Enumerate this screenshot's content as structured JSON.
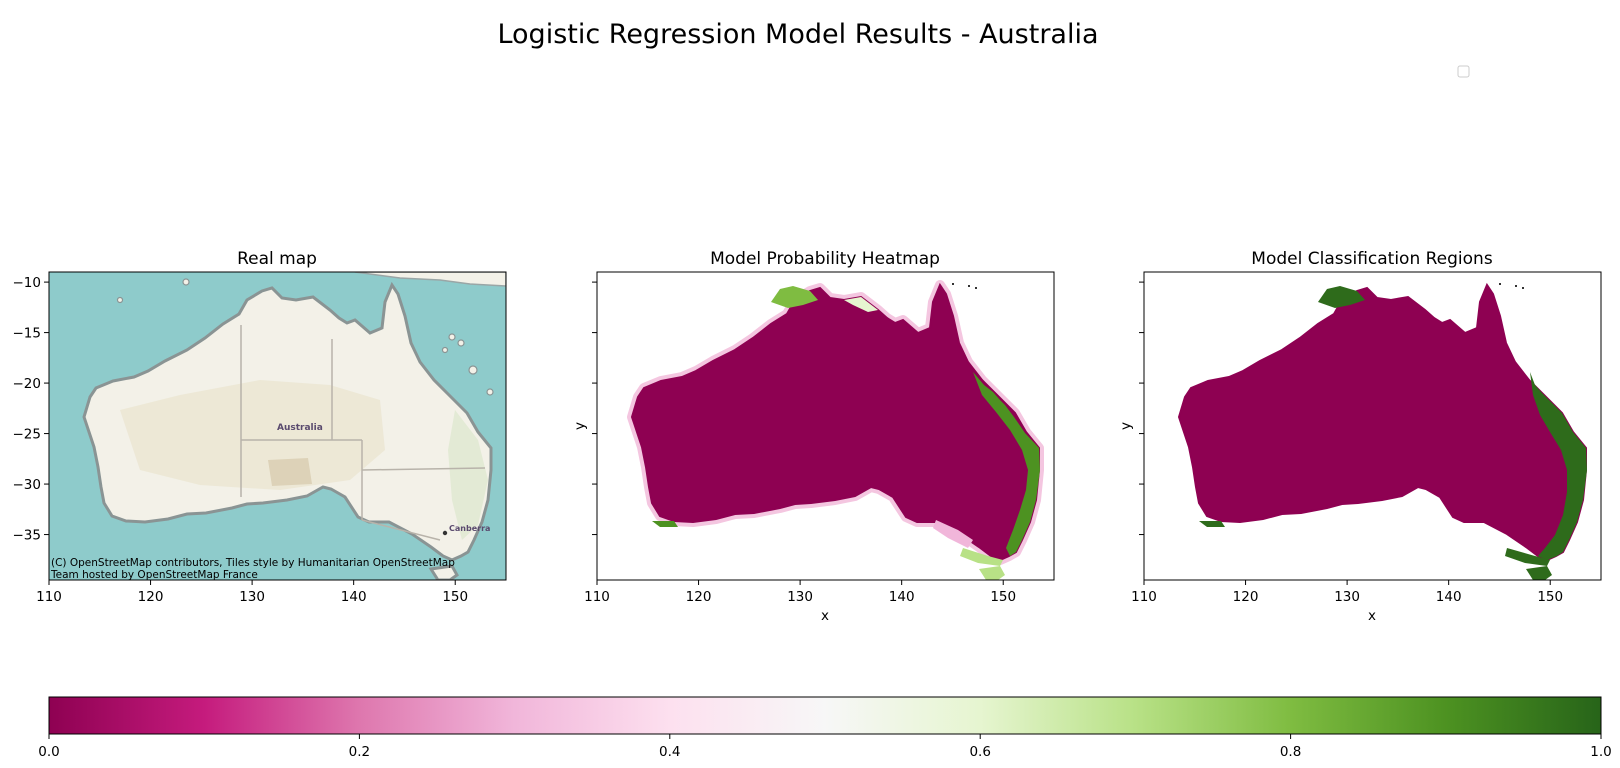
{
  "figure": {
    "title": "Logistic Regression Model Results - Australia"
  },
  "panels": [
    {
      "title": "Real map",
      "xlabel": "",
      "ylabel": "",
      "attribution_line1": "(C) OpenStreetMap contributors, Tiles style by Humanitarian OpenStreetMap",
      "attribution_line2": "Team hosted by OpenStreetMap France",
      "map_labels": {
        "country": "Australia",
        "city": "Canberra"
      }
    },
    {
      "title": "Model Probability Heatmap",
      "xlabel": "x",
      "ylabel": "y"
    },
    {
      "title": "Model Classification Regions",
      "xlabel": "x",
      "ylabel": "y"
    }
  ],
  "axes": {
    "x_ticks": [
      "110",
      "120",
      "130",
      "140",
      "150"
    ],
    "y_ticks": [
      "−10",
      "−15",
      "−20",
      "−25",
      "−30",
      "−35"
    ]
  },
  "colorbar": {
    "ticks": [
      "0.0",
      "0.2",
      "0.4",
      "0.6",
      "0.8",
      "1.0"
    ]
  },
  "chart_data": [
    {
      "type": "other",
      "kind": "basemap",
      "title": "Real map",
      "xlim": [
        110,
        155
      ],
      "ylim": [
        -39.5,
        -9
      ],
      "x_ticks": [
        110,
        120,
        130,
        140,
        150
      ],
      "y_ticks": [
        -10,
        -15,
        -20,
        -25,
        -30,
        -35
      ],
      "colors": {
        "ocean": "#8ecbcb",
        "land": "#f3f1e8"
      }
    },
    {
      "type": "heatmap",
      "title": "Model Probability Heatmap",
      "xlabel": "x",
      "ylabel": "y",
      "xlim": [
        110,
        155
      ],
      "ylim": [
        -39.5,
        -9
      ],
      "x_ticks": [
        110,
        120,
        130,
        140,
        150
      ],
      "colormap": "PiYG",
      "value_range": [
        0,
        1
      ]
    },
    {
      "type": "heatmap",
      "title": "Model Classification Regions",
      "xlabel": "x",
      "ylabel": "y",
      "xlim": [
        110,
        155
      ],
      "ylim": [
        -39.5,
        -9
      ],
      "x_ticks": [
        110,
        120,
        130,
        140,
        150
      ],
      "classes": [
        {
          "value": 0,
          "color": "#8e0152"
        },
        {
          "value": 1,
          "color": "#2e6b1b"
        }
      ]
    }
  ],
  "colors": {
    "class0": "#8e0152",
    "class1": "#2e6b1b",
    "ocean": "#8ecbcb",
    "land": "#f3f1e8",
    "border": "#b8b3aa"
  }
}
